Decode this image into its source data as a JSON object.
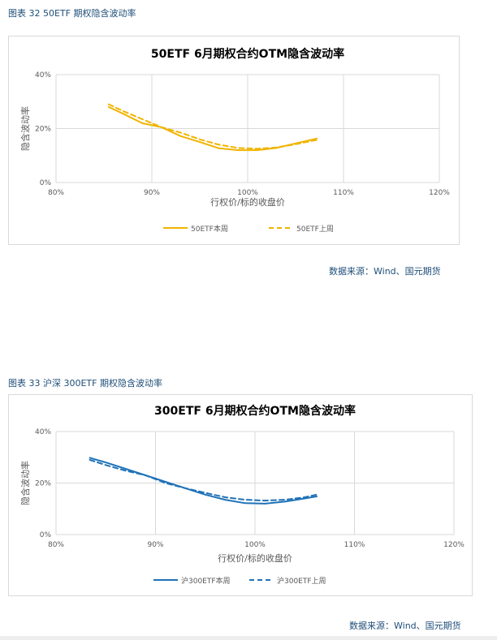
{
  "figures": [
    {
      "caption": "图表 32 50ETF 期权隐含波动率",
      "source": "数据来源：Wind、国元期货"
    },
    {
      "caption": "图表 33 沪深 300ETF 期权隐含波动率",
      "source": "数据来源：Wind、国元期货"
    }
  ],
  "colors": {
    "figure1_series": "#f0b400",
    "figure2_series": "#1f72b8",
    "grid": "#d9d9d9",
    "caption": "#1f4e79"
  },
  "chart_data": [
    {
      "type": "line",
      "title": "50ETF 6月期权合约OTM隐含波动率",
      "xlabel": "行权价/标的收盘价",
      "ylabel": "隐含波动率",
      "xlim": [
        0.8,
        1.2
      ],
      "ylim": [
        0,
        0.4
      ],
      "xticks": [
        0.8,
        0.9,
        1.0,
        1.1,
        1.2
      ],
      "xtick_labels": [
        "80%",
        "90%",
        "100%",
        "110%",
        "120%"
      ],
      "yticks": [
        0,
        0.2,
        0.4
      ],
      "ytick_labels": [
        "0%",
        "20%",
        "40%"
      ],
      "grid": true,
      "legend_position": "bottom",
      "series": [
        {
          "name": "50ETF本周",
          "style": "solid",
          "x": [
            0.855,
            0.87,
            0.89,
            0.91,
            0.93,
            0.95,
            0.97,
            0.99,
            1.01,
            1.03,
            1.05,
            1.072
          ],
          "y": [
            0.28,
            0.255,
            0.22,
            0.205,
            0.172,
            0.15,
            0.127,
            0.12,
            0.12,
            0.128,
            0.145,
            0.163
          ]
        },
        {
          "name": "50ETF上周",
          "style": "dashed",
          "x": [
            0.855,
            0.87,
            0.89,
            0.91,
            0.93,
            0.95,
            0.97,
            0.99,
            1.01,
            1.03,
            1.05,
            1.072
          ],
          "y": [
            0.29,
            0.265,
            0.235,
            0.205,
            0.185,
            0.16,
            0.14,
            0.128,
            0.125,
            0.13,
            0.142,
            0.158
          ]
        }
      ]
    },
    {
      "type": "line",
      "title": "300ETF 6月期权合约OTM隐含波动率",
      "xlabel": "行权价/标的收盘价",
      "ylabel": "隐含波动率",
      "xlim": [
        0.8,
        1.2
      ],
      "ylim": [
        0,
        0.4
      ],
      "xticks": [
        0.8,
        0.9,
        1.0,
        1.1,
        1.2
      ],
      "xtick_labels": [
        "80%",
        "90%",
        "100%",
        "110%",
        "120%"
      ],
      "yticks": [
        0,
        0.2,
        0.4
      ],
      "ytick_labels": [
        "0%",
        "20%",
        "40%"
      ],
      "grid": true,
      "legend_position": "bottom",
      "series": [
        {
          "name": "沪300ETF本周",
          "style": "solid",
          "x": [
            0.834,
            0.85,
            0.87,
            0.89,
            0.91,
            0.93,
            0.95,
            0.97,
            0.99,
            1.01,
            1.03,
            1.05,
            1.062
          ],
          "y": [
            0.298,
            0.28,
            0.255,
            0.23,
            0.205,
            0.18,
            0.155,
            0.135,
            0.122,
            0.12,
            0.128,
            0.14,
            0.148
          ]
        },
        {
          "name": "沪300ETF上周",
          "style": "dashed",
          "x": [
            0.834,
            0.85,
            0.87,
            0.89,
            0.91,
            0.93,
            0.95,
            0.97,
            0.99,
            1.01,
            1.03,
            1.05,
            1.062
          ],
          "y": [
            0.29,
            0.27,
            0.248,
            0.23,
            0.2,
            0.18,
            0.162,
            0.145,
            0.135,
            0.132,
            0.135,
            0.145,
            0.155
          ]
        }
      ]
    }
  ]
}
